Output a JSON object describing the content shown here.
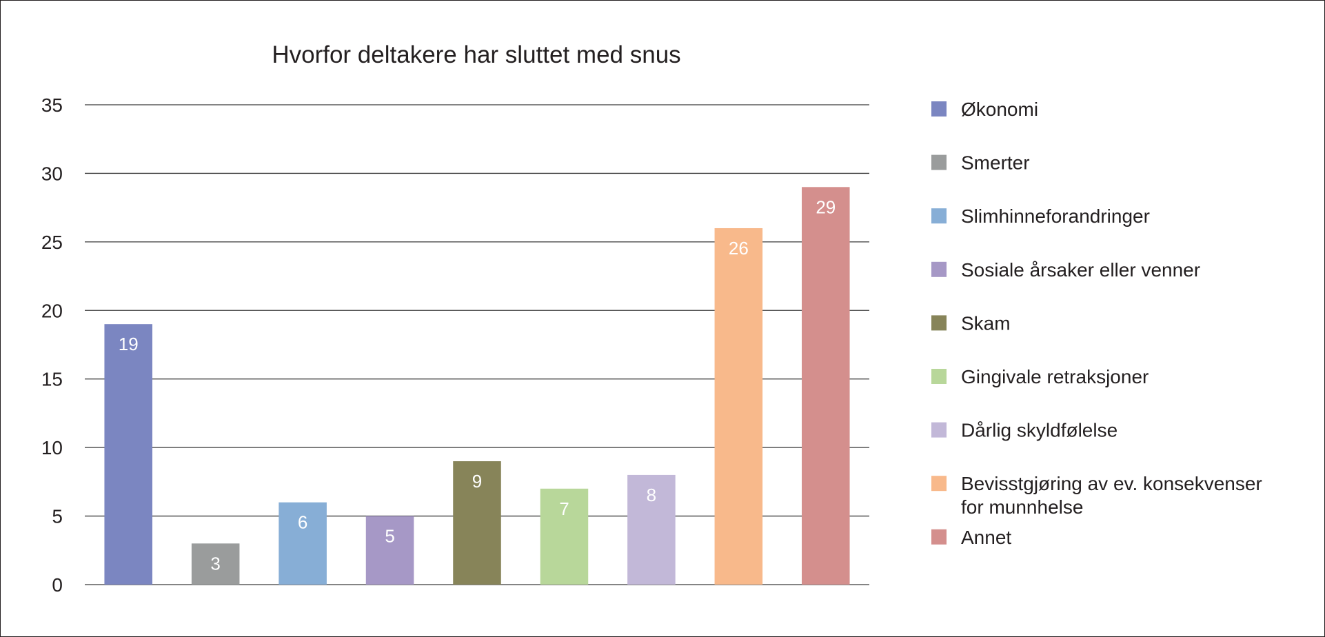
{
  "chart_data": {
    "type": "bar",
    "title": "Hvorfor deltakere har sluttet med snus",
    "xlabel": "",
    "ylabel": "",
    "ylim": [
      0,
      35
    ],
    "yticks": [
      0,
      5,
      10,
      15,
      20,
      25,
      30,
      35
    ],
    "grid": true,
    "legend_position": "right",
    "categories": [
      "Økonomi",
      "Smerter",
      "Slimhinneforandringer",
      "Sosiale årsaker eller venner",
      "Skam",
      "Gingivale retraksjoner",
      "Dårlig skyldfølelse",
      "Bevisstgjøring av ev. konsekvenser for munnhelse",
      "Annet"
    ],
    "legend": [
      [
        "Økonomi"
      ],
      [
        "Smerter"
      ],
      [
        "Slimhinneforandringer"
      ],
      [
        "Sosiale årsaker eller venner"
      ],
      [
        "Skam"
      ],
      [
        "Gingivale retraksjoner"
      ],
      [
        "Dårlig skyldfølelse"
      ],
      [
        "Bevisstgjøring av ev. konsekvenser",
        "for munnhelse"
      ],
      [
        "Annet"
      ]
    ],
    "values": [
      19,
      3,
      6,
      5,
      9,
      7,
      8,
      26,
      29
    ],
    "colors": [
      "#7b86c1",
      "#9a9c9c",
      "#87aed6",
      "#a698c6",
      "#878459",
      "#b8d79a",
      "#c2b8d8",
      "#f8b98b",
      "#d48f8d"
    ]
  }
}
